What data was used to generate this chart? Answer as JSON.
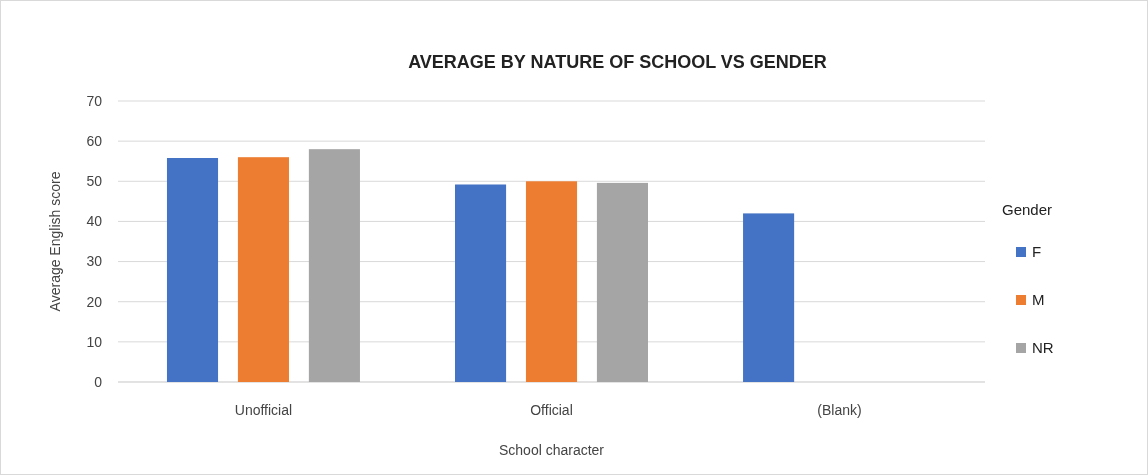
{
  "chart_data": {
    "type": "bar",
    "title": "AVERAGE BY NATURE OF SCHOOL VS GENDER",
    "xlabel": "School character",
    "ylabel": "Average English score",
    "legend_title": "Gender",
    "categories": [
      "Unofficial",
      "Official",
      "(Blank)"
    ],
    "series": [
      {
        "name": "F",
        "color": "#4472c4",
        "values": [
          55.8,
          49.2,
          42
        ]
      },
      {
        "name": "M",
        "color": "#ed7d31",
        "values": [
          56,
          50,
          null
        ]
      },
      {
        "name": "NR",
        "color": "#a5a5a5",
        "values": [
          58,
          49.6,
          null
        ]
      }
    ],
    "ylim": [
      0,
      70
    ],
    "yticks": [
      0,
      10,
      20,
      30,
      40,
      50,
      60,
      70
    ],
    "grid": "y",
    "legend": "right"
  }
}
